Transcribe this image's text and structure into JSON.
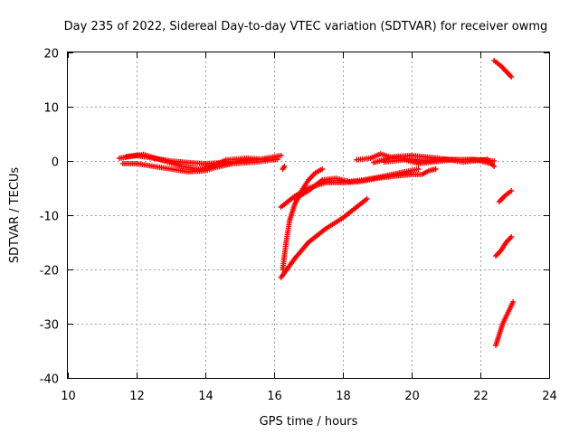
{
  "chart_data": {
    "type": "scatter",
    "title": "Day 235 of 2022, Sidereal Day-to-day VTEC variation (SDTVAR) for receiver owmg",
    "xlabel": "GPS time / hours",
    "ylabel": "SDTVAR / TECUs",
    "xlim": [
      10,
      24
    ],
    "ylim": [
      -40,
      20
    ],
    "xticks": [
      "10",
      "12",
      "14",
      "16",
      "18",
      "20",
      "22",
      "24"
    ],
    "yticks": [
      "-40",
      "-30",
      "-20",
      "-10",
      "0",
      "10",
      "20"
    ],
    "grid": true,
    "marker": "+",
    "color": "#ff0000",
    "tracks": [
      [
        [
          11.5,
          0.5
        ],
        [
          12.0,
          1.0
        ],
        [
          12.5,
          0.5
        ],
        [
          13.0,
          0.0
        ],
        [
          13.5,
          -0.3
        ],
        [
          14.0,
          -0.5
        ],
        [
          14.5,
          -0.3
        ],
        [
          15.0,
          0.0
        ],
        [
          15.5,
          0.2
        ],
        [
          16.2,
          1.0
        ]
      ],
      [
        [
          11.6,
          -0.5
        ],
        [
          12.0,
          -0.5
        ],
        [
          12.5,
          -1.0
        ],
        [
          13.0,
          -1.5
        ],
        [
          13.5,
          -2.0
        ],
        [
          14.0,
          -1.8
        ],
        [
          14.3,
          -1.2
        ],
        [
          14.8,
          -0.5
        ],
        [
          15.5,
          -0.2
        ],
        [
          16.1,
          0.3
        ]
      ],
      [
        [
          11.7,
          0.8
        ],
        [
          12.2,
          1.2
        ],
        [
          12.8,
          0.0
        ],
        [
          13.3,
          -1.0
        ],
        [
          13.8,
          -1.5
        ],
        [
          14.2,
          -1.0
        ],
        [
          14.6,
          0.2
        ],
        [
          15.2,
          0.5
        ],
        [
          15.8,
          0.3
        ]
      ],
      [
        [
          16.25,
          -1.5
        ],
        [
          16.3,
          -1.0
        ]
      ],
      [
        [
          16.2,
          -8.5
        ],
        [
          16.6,
          -6.5
        ],
        [
          17.0,
          -5.0
        ],
        [
          17.5,
          -4.0
        ],
        [
          18.0,
          -4.0
        ],
        [
          18.5,
          -3.8
        ],
        [
          19.0,
          -3.2
        ],
        [
          19.5,
          -2.8
        ],
        [
          20.0,
          -2.5
        ],
        [
          20.3,
          -2.5
        ],
        [
          20.5,
          -1.8
        ],
        [
          20.7,
          -1.5
        ]
      ],
      [
        [
          16.2,
          -21.5
        ],
        [
          16.6,
          -18.0
        ],
        [
          17.0,
          -15.0
        ],
        [
          17.5,
          -12.5
        ],
        [
          18.0,
          -10.5
        ],
        [
          18.4,
          -8.5
        ],
        [
          18.7,
          -7.0
        ]
      ],
      [
        [
          16.25,
          -20.0
        ],
        [
          16.35,
          -15.0
        ],
        [
          16.45,
          -11.0
        ],
        [
          16.6,
          -8.0
        ],
        [
          16.8,
          -5.5
        ],
        [
          17.0,
          -3.5
        ],
        [
          17.2,
          -2.2
        ],
        [
          17.4,
          -1.5
        ]
      ],
      [
        [
          16.6,
          -7.0
        ],
        [
          17.0,
          -5.5
        ],
        [
          17.4,
          -3.5
        ],
        [
          17.8,
          -3.2
        ],
        [
          18.2,
          -3.8
        ],
        [
          18.6,
          -3.5
        ],
        [
          19.2,
          -2.8
        ],
        [
          19.8,
          -2.0
        ],
        [
          20.2,
          -1.5
        ]
      ],
      [
        [
          18.4,
          0.2
        ],
        [
          18.8,
          0.5
        ],
        [
          19.1,
          1.3
        ],
        [
          19.5,
          0.5
        ],
        [
          20.0,
          0.3
        ],
        [
          20.5,
          0.0
        ],
        [
          21.0,
          0.3
        ],
        [
          21.5,
          0.2
        ],
        [
          22.0,
          0.2
        ],
        [
          22.4,
          0.0
        ]
      ],
      [
        [
          19.2,
          -0.2
        ],
        [
          19.8,
          0.2
        ],
        [
          20.2,
          -0.5
        ],
        [
          20.6,
          -0.2
        ],
        [
          21.2,
          0.2
        ],
        [
          21.8,
          0.3
        ],
        [
          22.3,
          -0.5
        ]
      ],
      [
        [
          18.9,
          -0.3
        ],
        [
          19.5,
          0.8
        ],
        [
          20.0,
          1.0
        ],
        [
          20.8,
          0.5
        ],
        [
          21.5,
          -0.2
        ],
        [
          22.2,
          0.3
        ],
        [
          22.4,
          -1.0
        ]
      ],
      [
        [
          22.4,
          18.5
        ],
        [
          22.6,
          17.5
        ],
        [
          22.9,
          15.5
        ]
      ],
      [
        [
          22.55,
          -7.5
        ],
        [
          22.7,
          -6.5
        ],
        [
          22.9,
          -5.5
        ]
      ],
      [
        [
          22.45,
          -17.5
        ],
        [
          22.6,
          -16.5
        ],
        [
          22.75,
          -15.0
        ],
        [
          22.9,
          -14.0
        ]
      ],
      [
        [
          22.45,
          -34.0
        ],
        [
          22.55,
          -32.0
        ],
        [
          22.65,
          -30.0
        ],
        [
          22.8,
          -28.0
        ],
        [
          22.95,
          -26.0
        ]
      ]
    ]
  }
}
